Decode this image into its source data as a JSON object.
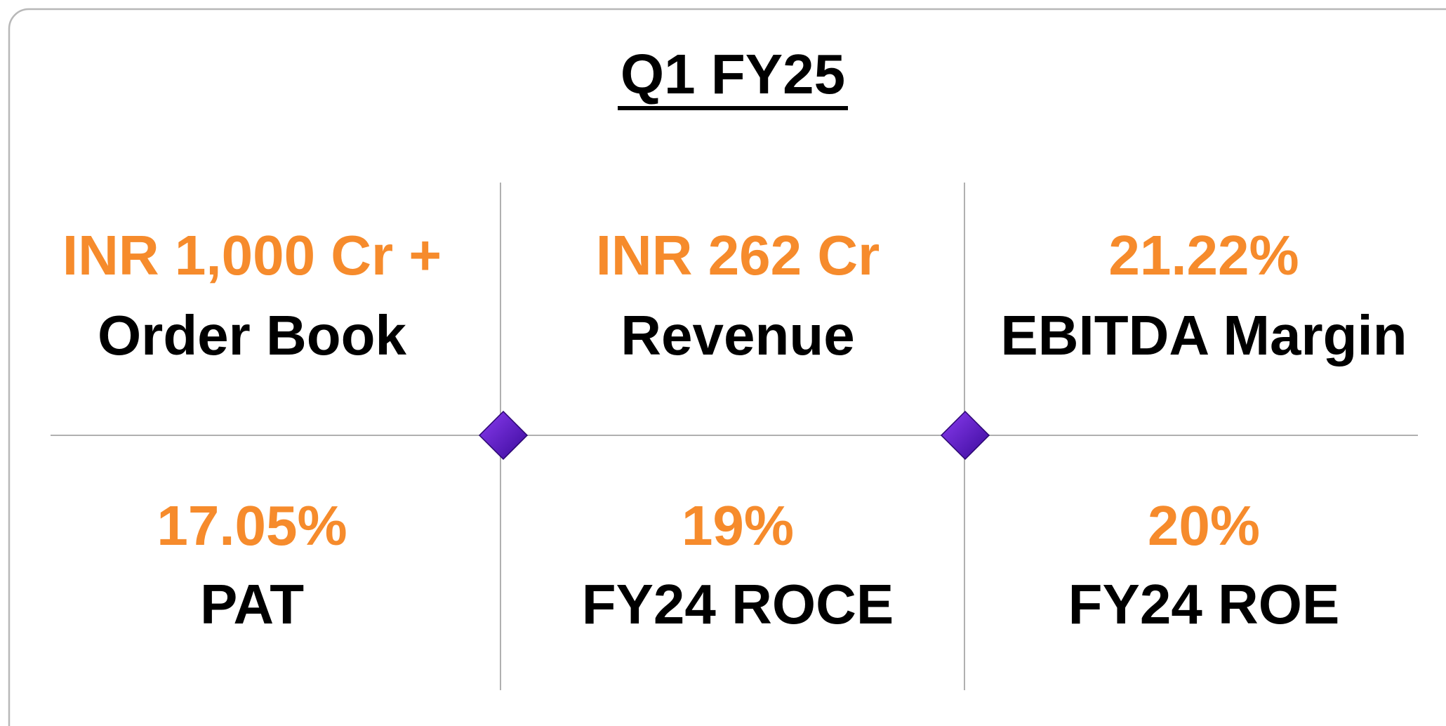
{
  "title": "Q1 FY25",
  "metrics": [
    {
      "value": "INR 1,000 Cr +",
      "label": "Order Book"
    },
    {
      "value": "INR 262 Cr",
      "label": "Revenue"
    },
    {
      "value": "21.22%",
      "label": "EBITDA Margin"
    },
    {
      "value": "17.05%",
      "label": "PAT"
    },
    {
      "value": "19%",
      "label": "FY24 ROCE"
    },
    {
      "value": "20%",
      "label": "FY24 ROE"
    }
  ]
}
